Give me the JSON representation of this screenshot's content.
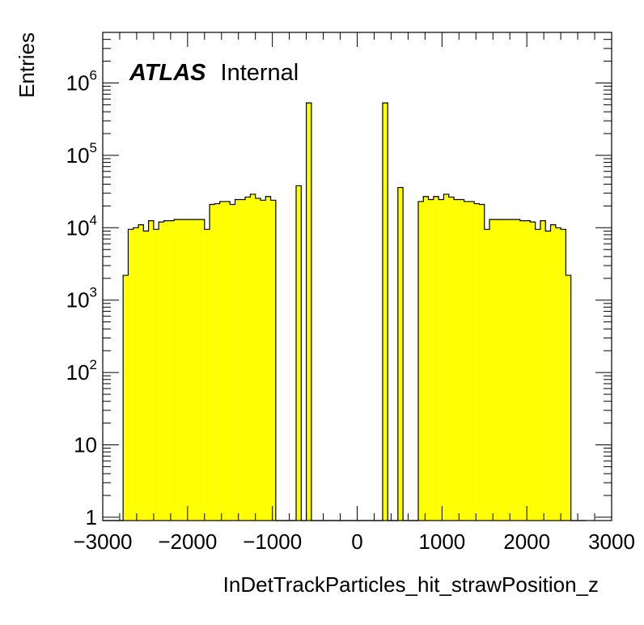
{
  "chart_data": {
    "type": "bar",
    "title": "",
    "xlabel": "InDetTrackParticles_hit_strawPosition_z",
    "ylabel": "Entries",
    "xlim": [
      -3000,
      3000
    ],
    "ylim": [
      0.9,
      5000000
    ],
    "yscale": "log",
    "grid": false,
    "fill_color": "#ffff00",
    "line_color": "#000000",
    "annotation": {
      "bold": "ATLAS",
      "normal": "Internal"
    },
    "x_ticks": [
      {
        "value": -3000,
        "label": "−3000"
      },
      {
        "value": -2000,
        "label": "−2000"
      },
      {
        "value": -1000,
        "label": "−1000"
      },
      {
        "value": 0,
        "label": "0"
      },
      {
        "value": 1000,
        "label": "1000"
      },
      {
        "value": 2000,
        "label": "2000"
      },
      {
        "value": 3000,
        "label": "3000"
      }
    ],
    "y_ticks": [
      {
        "value": 1,
        "base": "1",
        "exp": ""
      },
      {
        "value": 10,
        "base": "10",
        "exp": ""
      },
      {
        "value": 100,
        "base": "10",
        "exp": "2"
      },
      {
        "value": 1000,
        "base": "10",
        "exp": "3"
      },
      {
        "value": 10000,
        "base": "10",
        "exp": "4"
      },
      {
        "value": 100000,
        "base": "10",
        "exp": "5"
      },
      {
        "value": 1000000,
        "base": "10",
        "exp": "6"
      }
    ],
    "bin_edges_start": -3000,
    "bin_width": 60,
    "values": [
      0,
      0,
      0,
      0,
      2200,
      9500,
      10000,
      11000,
      9000,
      12500,
      9500,
      12000,
      12500,
      12500,
      13000,
      13000,
      13000,
      13000,
      13000,
      13000,
      9500,
      21000,
      21500,
      23000,
      23000,
      21000,
      24500,
      24500,
      26500,
      29000,
      25500,
      24000,
      27000,
      24000,
      0,
      0,
      0,
      0,
      38000,
      0,
      530000,
      0,
      0,
      0,
      0,
      0,
      0,
      0,
      0,
      0,
      0,
      0,
      0,
      0,
      0,
      530000,
      0,
      0,
      36000,
      0,
      0,
      0,
      23000,
      27000,
      24500,
      27000,
      24500,
      29000,
      26500,
      24500,
      24500,
      23000,
      23000,
      21500,
      21000,
      9500,
      13000,
      13000,
      13000,
      13000,
      13000,
      13000,
      12500,
      12500,
      12000,
      9500,
      12500,
      9000,
      11000,
      10000,
      9500,
      2200,
      0,
      0,
      0
    ]
  }
}
